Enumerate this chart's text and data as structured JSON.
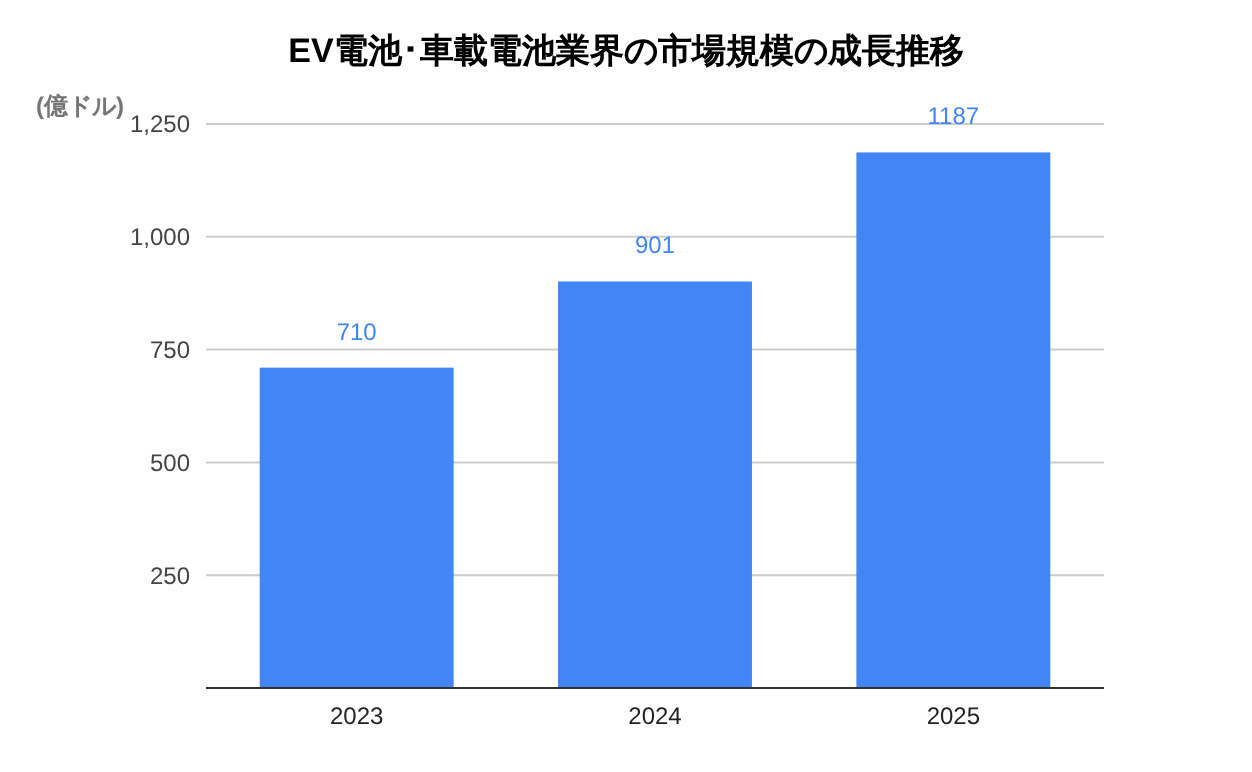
{
  "chart_data": {
    "type": "bar",
    "title": "EV電池･車載電池業界の市場規模の成長推移",
    "ylabel": "(億ドル)",
    "categories": [
      "2023",
      "2024",
      "2025"
    ],
    "values": [
      710,
      901,
      1187
    ],
    "color": "#4285f4",
    "ylim": [
      0,
      1250
    ],
    "yticks": [
      {
        "value": 0,
        "label": null
      },
      250,
      500,
      750,
      {
        "value": 1000,
        "label": "1,000"
      },
      {
        "value": 1250,
        "label": "1,250"
      }
    ],
    "grid": "y",
    "data_labels": true
  }
}
